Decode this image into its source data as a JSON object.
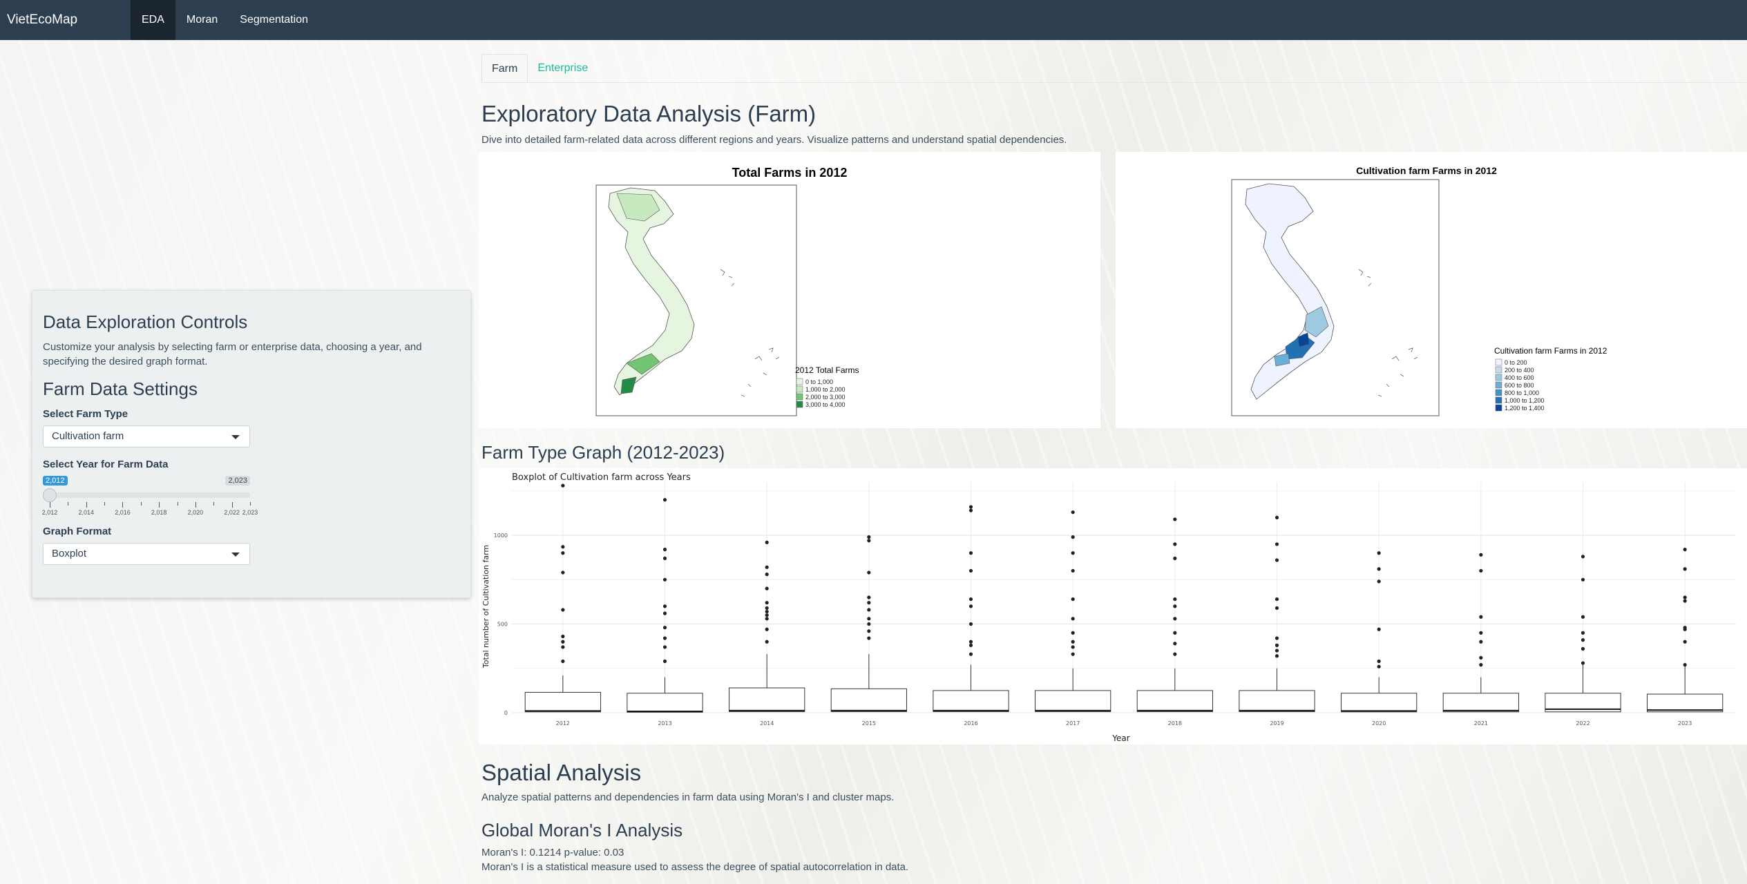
{
  "navbar": {
    "brand": "VietEcoMap",
    "items": [
      {
        "label": "EDA",
        "active": true
      },
      {
        "label": "Moran",
        "active": false
      },
      {
        "label": "Segmentation",
        "active": false
      }
    ]
  },
  "sidebar": {
    "title": "Data Exploration Controls",
    "description": "Customize your analysis by selecting farm or enterprise data, choosing a year, and specifying the desired graph format.",
    "settings_title": "Farm Data Settings",
    "farm_type_label": "Select Farm Type",
    "farm_type_value": "Cultivation farm",
    "year_label": "Select Year for Farm Data",
    "year_min": 2012,
    "year_max": 2023,
    "year_selected": 2012,
    "year_badge_min": "2,012",
    "year_badge_max": "2,023",
    "year_ticks": [
      "2,012",
      "2,014",
      "2,016",
      "2,018",
      "2,020",
      "2,022",
      "2,023"
    ],
    "graph_format_label": "Graph Format",
    "graph_format_value": "Boxplot"
  },
  "main": {
    "tabs": [
      {
        "label": "Farm",
        "active": true
      },
      {
        "label": "Enterprise",
        "active": false
      }
    ],
    "title": "Exploratory Data Analysis (Farm)",
    "description": "Dive into detailed farm-related data across different regions and years. Visualize patterns and understand spatial dependencies.",
    "map1": {
      "title": "Total Farms in 2012",
      "legend_title": "2012 Total Farms",
      "legend": [
        {
          "label": "0 to 1,000",
          "color": "#e5f5e0"
        },
        {
          "label": "1,000 to 2,000",
          "color": "#c7e9c0"
        },
        {
          "label": "2,000 to 3,000",
          "color": "#74c476"
        },
        {
          "label": "3,000 to 4,000",
          "color": "#238b45"
        }
      ]
    },
    "map2": {
      "title": "Cultivation farm Farms in 2012",
      "legend_title": "Cultivation farm Farms in 2012",
      "legend": [
        {
          "label": "0 to 200",
          "color": "#eff3ff"
        },
        {
          "label": "200 to 400",
          "color": "#c6dbef"
        },
        {
          "label": "400 to 600",
          "color": "#9ecae1"
        },
        {
          "label": "600 to 800",
          "color": "#6baed6"
        },
        {
          "label": "800 to 1,000",
          "color": "#4292c6"
        },
        {
          "label": "1,000 to 1,200",
          "color": "#2171b5"
        },
        {
          "label": "1,200 to 1,400",
          "color": "#084594"
        }
      ]
    },
    "graph_section_title": "Farm Type Graph (2012-2023)",
    "spatial_title": "Spatial Analysis",
    "spatial_desc": "Analyze spatial patterns and dependencies in farm data using Moran's I and cluster maps.",
    "moran_title": "Global Moran's I Analysis",
    "moran_result": "Moran's I: 0.1214 p-value: 0.03",
    "moran_desc": "Moran's I is a statistical measure used to assess the degree of spatial autocorrelation in data."
  },
  "chart_data": {
    "type": "boxplot",
    "title": "Boxplot of Cultivation farm across Years",
    "xlabel": "Year",
    "ylabel": "Total number of Cultivation farm",
    "ylim": [
      0,
      1300
    ],
    "yticks": [
      0,
      500,
      1000
    ],
    "grid": true,
    "categories": [
      "2012",
      "2013",
      "2014",
      "2015",
      "2016",
      "2017",
      "2018",
      "2019",
      "2020",
      "2021",
      "2022",
      "2023"
    ],
    "boxes": [
      {
        "q1": 5,
        "median": 10,
        "q3": 115,
        "whisker_high": 210,
        "outliers": [
          290,
          370,
          400,
          430,
          580,
          790,
          900,
          935,
          1280
        ]
      },
      {
        "q1": 3,
        "median": 8,
        "q3": 110,
        "whisker_high": 200,
        "outliers": [
          290,
          370,
          420,
          480,
          560,
          600,
          750,
          870,
          920,
          1200
        ]
      },
      {
        "q1": 6,
        "median": 12,
        "q3": 140,
        "whisker_high": 330,
        "outliers": [
          400,
          470,
          530,
          550,
          570,
          590,
          620,
          700,
          780,
          820,
          960
        ]
      },
      {
        "q1": 6,
        "median": 12,
        "q3": 135,
        "whisker_high": 330,
        "outliers": [
          420,
          460,
          500,
          530,
          580,
          620,
          650,
          790,
          970,
          990
        ]
      },
      {
        "q1": 6,
        "median": 12,
        "q3": 125,
        "whisker_high": 270,
        "outliers": [
          330,
          380,
          400,
          500,
          600,
          640,
          800,
          900,
          1140,
          1160
        ]
      },
      {
        "q1": 6,
        "median": 12,
        "q3": 125,
        "whisker_high": 250,
        "outliers": [
          330,
          370,
          400,
          450,
          530,
          640,
          800,
          900,
          990,
          1130
        ]
      },
      {
        "q1": 6,
        "median": 12,
        "q3": 125,
        "whisker_high": 250,
        "outliers": [
          330,
          390,
          450,
          530,
          600,
          640,
          870,
          950,
          1090
        ]
      },
      {
        "q1": 6,
        "median": 12,
        "q3": 125,
        "whisker_high": 250,
        "outliers": [
          320,
          350,
          380,
          420,
          590,
          640,
          860,
          950,
          1100
        ]
      },
      {
        "q1": 5,
        "median": 10,
        "q3": 110,
        "whisker_high": 200,
        "outliers": [
          260,
          290,
          470,
          740,
          810,
          900
        ]
      },
      {
        "q1": 5,
        "median": 12,
        "q3": 110,
        "whisker_high": 200,
        "outliers": [
          270,
          310,
          400,
          450,
          540,
          800,
          890
        ]
      },
      {
        "q1": 5,
        "median": 20,
        "q3": 110,
        "whisker_high": 280,
        "outliers": [
          280,
          360,
          410,
          450,
          540,
          750,
          880
        ]
      },
      {
        "q1": 5,
        "median": 15,
        "q3": 105,
        "whisker_high": 270,
        "outliers": [
          270,
          400,
          470,
          480,
          630,
          650,
          810,
          920
        ]
      }
    ]
  }
}
